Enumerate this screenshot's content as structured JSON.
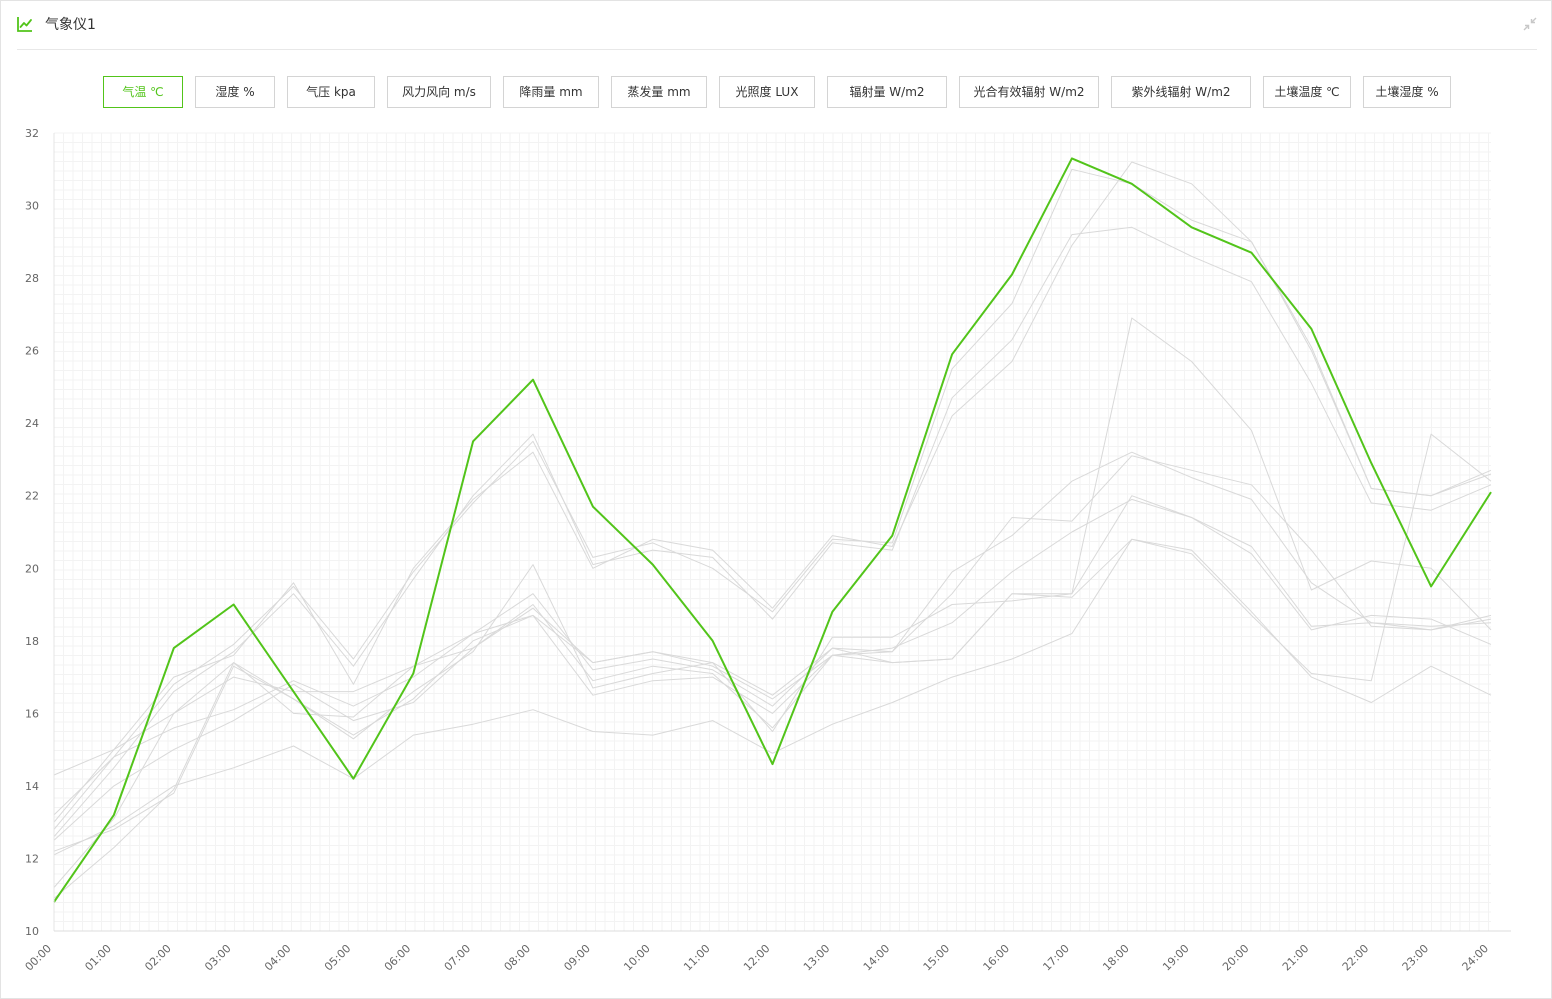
{
  "header": {
    "title": "气象仪1",
    "icon": "line-chart-icon",
    "accent": "#52c41a"
  },
  "tabs": [
    {
      "label": "气温 ℃",
      "active": true
    },
    {
      "label": "湿度 %",
      "active": false
    },
    {
      "label": "气压 kpa",
      "active": false
    },
    {
      "label": "风力风向 m/s",
      "active": false
    },
    {
      "label": "降雨量 mm",
      "active": false
    },
    {
      "label": "蒸发量 mm",
      "active": false
    },
    {
      "label": "光照度 LUX",
      "active": false
    },
    {
      "label": "辐射量 W/m2",
      "active": false
    },
    {
      "label": "光合有效辐射 W/m2",
      "active": false
    },
    {
      "label": "紫外线辐射 W/m2",
      "active": false
    },
    {
      "label": "土壤温度 ℃",
      "active": false
    },
    {
      "label": "土壤湿度 %",
      "active": false
    }
  ],
  "chart_data": {
    "type": "line",
    "x": [
      "00:00",
      "01:00",
      "02:00",
      "03:00",
      "04:00",
      "05:00",
      "06:00",
      "07:00",
      "08:00",
      "09:00",
      "10:00",
      "11:00",
      "12:00",
      "13:00",
      "14:00",
      "15:00",
      "16:00",
      "17:00",
      "18:00",
      "19:00",
      "20:00",
      "21:00",
      "22:00",
      "23:00",
      "24:00"
    ],
    "ylim": [
      10,
      32
    ],
    "yticks": [
      10,
      12,
      14,
      16,
      18,
      20,
      22,
      24,
      26,
      28,
      30,
      32
    ],
    "grid": true,
    "highlight_color": "#52c41a",
    "background_color": "#d9d9d9",
    "highlight": {
      "values": [
        10.8,
        13.2,
        17.8,
        19.0,
        16.6,
        14.2,
        17.1,
        23.5,
        25.2,
        21.7,
        20.1,
        18.0,
        14.6,
        18.8,
        20.9,
        25.9,
        28.1,
        31.3,
        30.6,
        29.4,
        28.7,
        26.6,
        22.9,
        19.5,
        22.1
      ]
    },
    "series": [
      {
        "values": [
          12.8,
          14.8,
          16.8,
          17.9,
          19.5,
          17.5,
          19.9,
          21.8,
          23.5,
          20.3,
          20.7,
          20.0,
          18.8,
          20.8,
          20.7,
          25.5,
          27.3,
          31.0,
          30.6,
          29.6,
          29.0,
          26.0,
          22.2,
          22.0,
          22.6
        ]
      },
      {
        "values": [
          12.6,
          14.5,
          16.6,
          17.7,
          19.3,
          17.3,
          19.7,
          22.0,
          23.7,
          20.1,
          20.5,
          20.3,
          18.6,
          20.7,
          20.5,
          24.7,
          26.3,
          29.2,
          29.4,
          28.6,
          27.9,
          25.1,
          21.8,
          21.6,
          22.3
        ]
      },
      {
        "values": [
          13.0,
          15.0,
          17.0,
          17.6,
          19.6,
          16.8,
          20.0,
          21.9,
          23.2,
          20.0,
          20.8,
          20.5,
          18.9,
          20.9,
          20.6,
          24.2,
          25.7,
          28.9,
          31.2,
          30.6,
          29.0,
          26.1,
          22.2,
          22.0,
          22.7
        ]
      },
      {
        "values": [
          14.3,
          15.0,
          16.0,
          17.0,
          16.6,
          16.6,
          17.3,
          17.8,
          18.9,
          17.4,
          17.7,
          17.3,
          16.4,
          17.6,
          17.7,
          19.3,
          21.4,
          21.3,
          23.1,
          22.7,
          22.3,
          20.5,
          18.4,
          18.3,
          18.7
        ]
      },
      {
        "values": [
          13.2,
          14.8,
          15.6,
          16.1,
          16.9,
          16.2,
          17.0,
          18.2,
          19.3,
          17.2,
          17.5,
          17.2,
          16.2,
          17.8,
          17.7,
          19.9,
          20.9,
          22.4,
          23.2,
          22.5,
          21.9,
          19.6,
          18.5,
          18.3,
          18.6
        ]
      },
      {
        "values": [
          12.5,
          14.0,
          15.0,
          15.8,
          16.8,
          15.8,
          16.3,
          17.8,
          19.0,
          16.9,
          17.3,
          17.1,
          15.6,
          17.6,
          17.8,
          18.5,
          19.9,
          21.0,
          21.9,
          21.4,
          20.6,
          18.4,
          18.5,
          18.4,
          18.5
        ]
      },
      {
        "values": [
          12.1,
          12.9,
          14.0,
          14.5,
          15.1,
          14.2,
          15.4,
          15.7,
          16.1,
          15.5,
          15.4,
          15.8,
          14.9,
          15.7,
          16.3,
          17.0,
          17.5,
          18.2,
          20.8,
          20.5,
          18.8,
          17.0,
          16.3,
          17.3,
          16.5
        ]
      },
      {
        "values": [
          10.9,
          12.3,
          13.9,
          17.4,
          16.4,
          15.3,
          16.6,
          17.7,
          20.1,
          16.7,
          17.1,
          17.4,
          15.5,
          18.1,
          18.1,
          19.0,
          19.1,
          19.3,
          26.9,
          25.7,
          23.8,
          19.4,
          20.2,
          20.0,
          18.3
        ]
      },
      {
        "values": [
          11.2,
          13.1,
          16.0,
          17.4,
          16.0,
          15.9,
          17.3,
          18.2,
          18.7,
          17.4,
          17.7,
          17.4,
          16.5,
          17.8,
          17.4,
          17.5,
          19.3,
          19.3,
          22.0,
          21.4,
          20.4,
          18.3,
          18.7,
          18.6,
          17.9
        ]
      },
      {
        "values": [
          12.2,
          12.8,
          13.8,
          17.3,
          16.4,
          15.4,
          16.4,
          18.0,
          18.7,
          16.5,
          16.9,
          17.0,
          16.0,
          17.6,
          17.4,
          17.5,
          19.3,
          19.2,
          20.8,
          20.4,
          18.7,
          17.1,
          16.9,
          23.7,
          22.4
        ]
      }
    ]
  }
}
